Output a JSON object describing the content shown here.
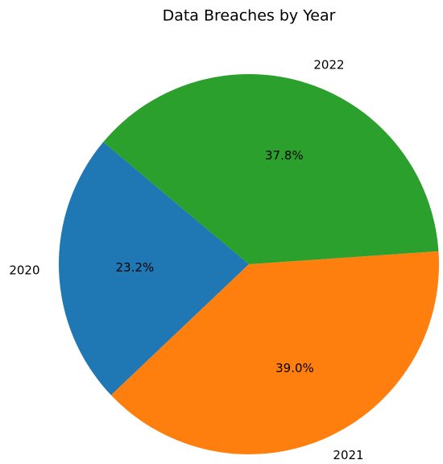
{
  "chart_data": {
    "type": "pie",
    "title": "Data Breaches by Year",
    "categories": [
      "2020",
      "2021",
      "2022"
    ],
    "values": [
      23.2,
      39.0,
      37.8
    ],
    "value_labels": [
      "23.2%",
      "39.0%",
      "37.8%"
    ],
    "colors": [
      "#1f77b4",
      "#ff7f0e",
      "#2ca02c"
    ]
  }
}
